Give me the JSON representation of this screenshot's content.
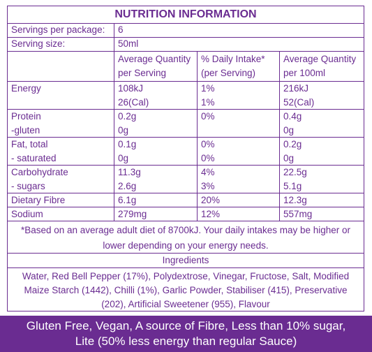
{
  "title": "NUTRITION INFORMATION",
  "servings": {
    "label": "Servings per package:",
    "value": "6"
  },
  "serving_size": {
    "label": "Serving size:",
    "value": "50ml"
  },
  "headers": {
    "col1_line1": "Average Quantity",
    "col1_line2": "per Serving",
    "col2_line1": "% Daily Intake*",
    "col2_line2": "(per Serving)",
    "col3_line1": "Average Quantity",
    "col3_line2": "per 100ml"
  },
  "rows": [
    {
      "label": "Energy",
      "per_serving": "108kJ",
      "daily": "1%",
      "per_100": "216kJ"
    },
    {
      "label": "",
      "per_serving": "26(Cal)",
      "daily": "1%",
      "per_100": "52(Cal)"
    },
    {
      "label": "Protein",
      "per_serving": "0.2g",
      "daily": "0%",
      "per_100": "0.4g"
    },
    {
      "label": " -gluten",
      "per_serving": "0g",
      "daily": "",
      "per_100": "0g"
    },
    {
      "label": "Fat, total",
      "per_serving": "0.1g",
      "daily": "0%",
      "per_100": "0.2g"
    },
    {
      "label": " - saturated",
      "per_serving": "0g",
      "daily": "0%",
      "per_100": "0g"
    },
    {
      "label": "Carbohydrate",
      "per_serving": "11.3g",
      "daily": "4%",
      "per_100": "22.5g"
    },
    {
      "label": " - sugars",
      "per_serving": "2.6g",
      "daily": "3%",
      "per_100": "5.1g"
    },
    {
      "label": "Dietary Fibre",
      "per_serving": "6.1g",
      "daily": "20%",
      "per_100": "12.3g"
    },
    {
      "label": "Sodium",
      "per_serving": "279mg",
      "daily": "12%",
      "per_100": "557mg"
    }
  ],
  "footnote_line1": "*Based on an average adult diet of 8700kJ. Your daily intakes may be higher or",
  "footnote_line2": "lower depending on your energy needs.",
  "ingredients_heading": "Ingredients",
  "ingredients_line1": "Water, Red Bell Pepper (17%), Polydextrose, Vinegar, Fructose, Salt, Modified",
  "ingredients_line2": "Maize Starch (1442), Chilli (1%), Garlic Powder, Stabiliser (415), Preservative",
  "ingredients_line3": "(202), Artificial Sweetener (955), Flavour",
  "banner_line1": "Gluten Free, Vegan, A source of Fibre, Less than 10% sugar,",
  "banner_line2": "Lite (50% less energy than regular Sauce)",
  "colors": {
    "accent": "#6a2c91",
    "banner_bg": "#6a2c91",
    "banner_text": "#ffffff"
  }
}
